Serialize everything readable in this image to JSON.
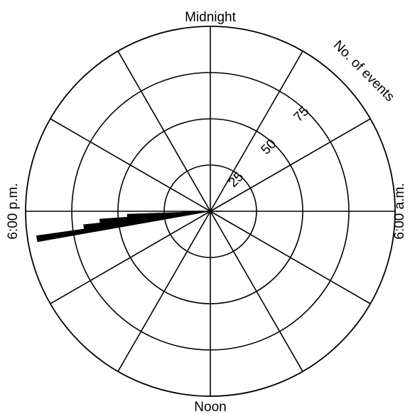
{
  "chart_data": {
    "type": "polar-bar",
    "direction_labels": {
      "top": "Midnight",
      "right": "6:00 a.m.",
      "bottom": "Noon",
      "left": "6:00 p.m."
    },
    "radial_axis": {
      "label": "No. of events",
      "ticks": [
        25,
        50,
        75
      ],
      "max": 100
    },
    "spokes": 12,
    "grid": true,
    "color": "#000000",
    "bins": [
      {
        "angle_deg": 261,
        "value": 95
      },
      {
        "angle_deg": 263,
        "value": 69
      },
      {
        "angle_deg": 265,
        "value": 60
      },
      {
        "angle_deg": 267,
        "value": 45
      },
      {
        "angle_deg": 269,
        "value": 15
      },
      {
        "angle_deg": 271,
        "value": 6
      },
      {
        "angle_deg": 87,
        "value": 4
      },
      {
        "angle_deg": 89,
        "value": 6
      }
    ]
  }
}
